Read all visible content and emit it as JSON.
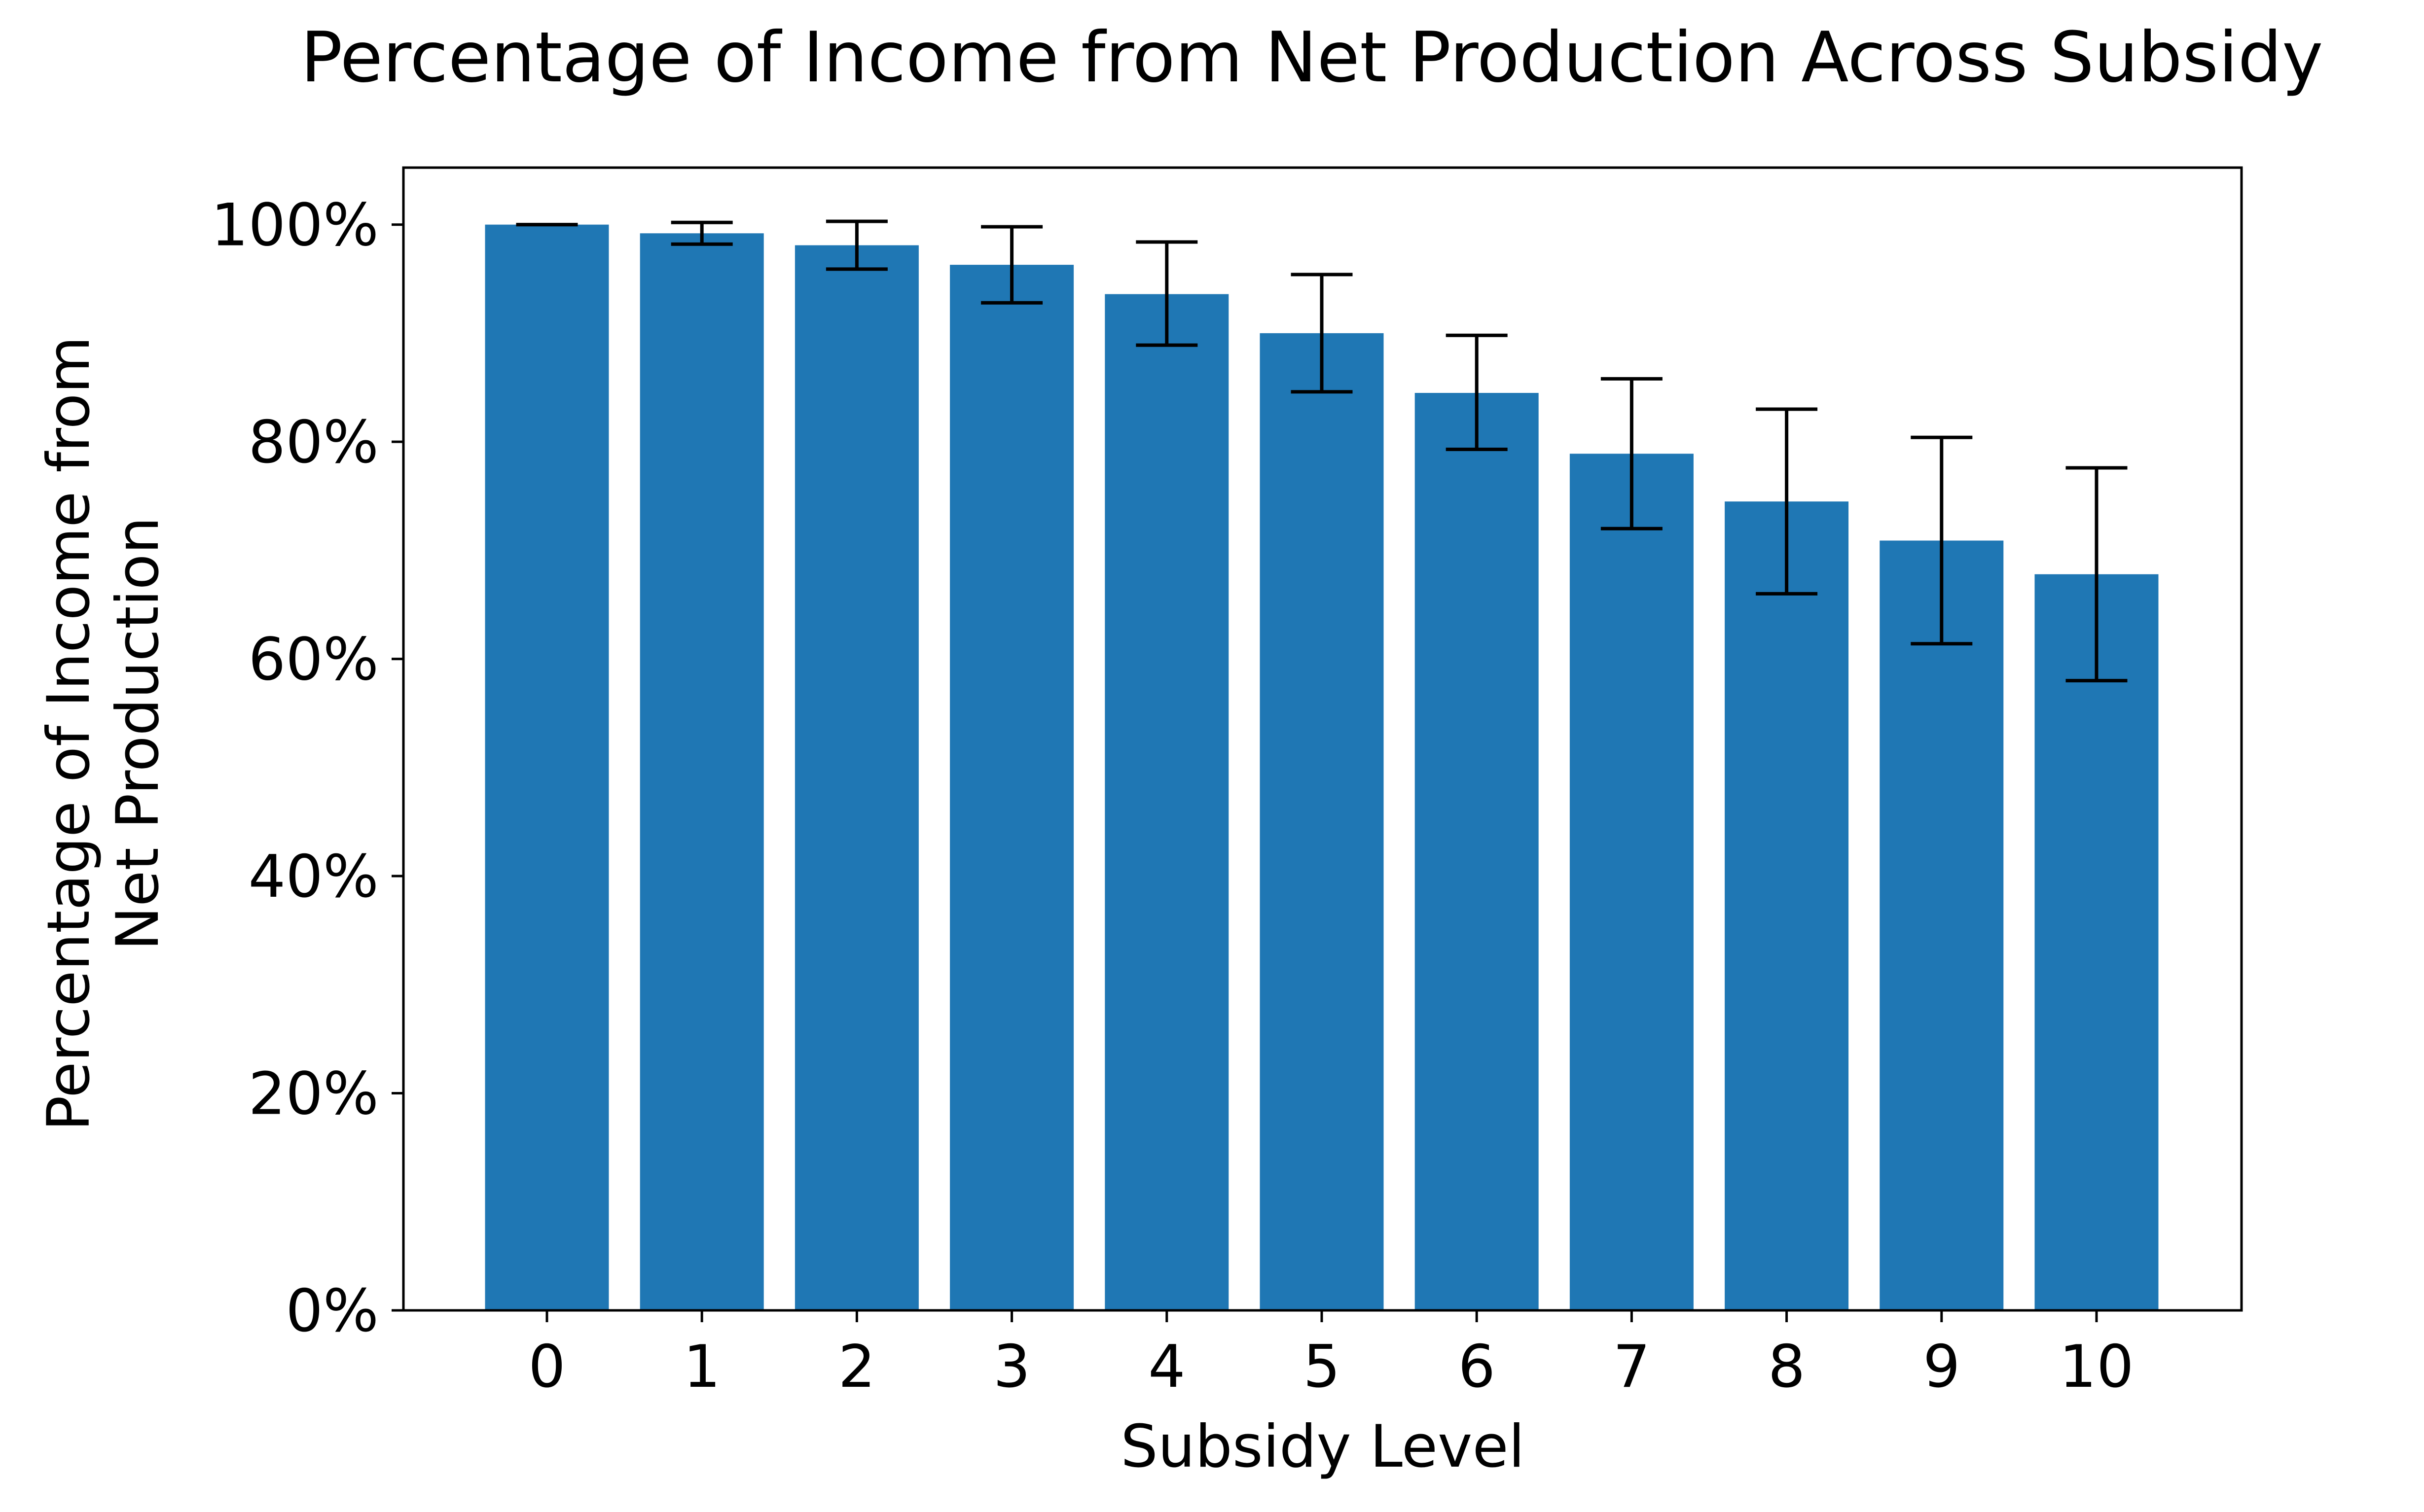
{
  "chart_data": {
    "type": "bar",
    "title": "Percentage of Income from Net Production Across Subsidy",
    "xlabel": "Subsidy Level",
    "ylabel_lines": [
      "Percentage of Income from",
      "Net Production"
    ],
    "categories": [
      "0",
      "1",
      "2",
      "3",
      "4",
      "5",
      "6",
      "7",
      "8",
      "9",
      "10"
    ],
    "series": [
      {
        "values": [
          100.0,
          99.2,
          98.1,
          96.3,
          93.6,
          90.0,
          84.5,
          78.9,
          74.5,
          70.9,
          67.8
        ],
        "error_low": [
          100.0,
          98.2,
          95.9,
          92.8,
          88.9,
          84.6,
          79.3,
          72.0,
          66.0,
          61.4,
          58.0
        ],
        "error_high": [
          100.0,
          100.2,
          100.3,
          99.8,
          98.4,
          95.4,
          89.8,
          85.8,
          83.0,
          80.4,
          77.6
        ],
        "color": "#1f77b4"
      }
    ],
    "y_ticks": [
      0,
      20,
      40,
      60,
      80,
      100
    ],
    "y_tick_labels": [
      "0%",
      "20%",
      "40%",
      "60%",
      "80%",
      "100%"
    ],
    "ylim": [
      0,
      105.25
    ],
    "grid": false,
    "legend": "none"
  }
}
